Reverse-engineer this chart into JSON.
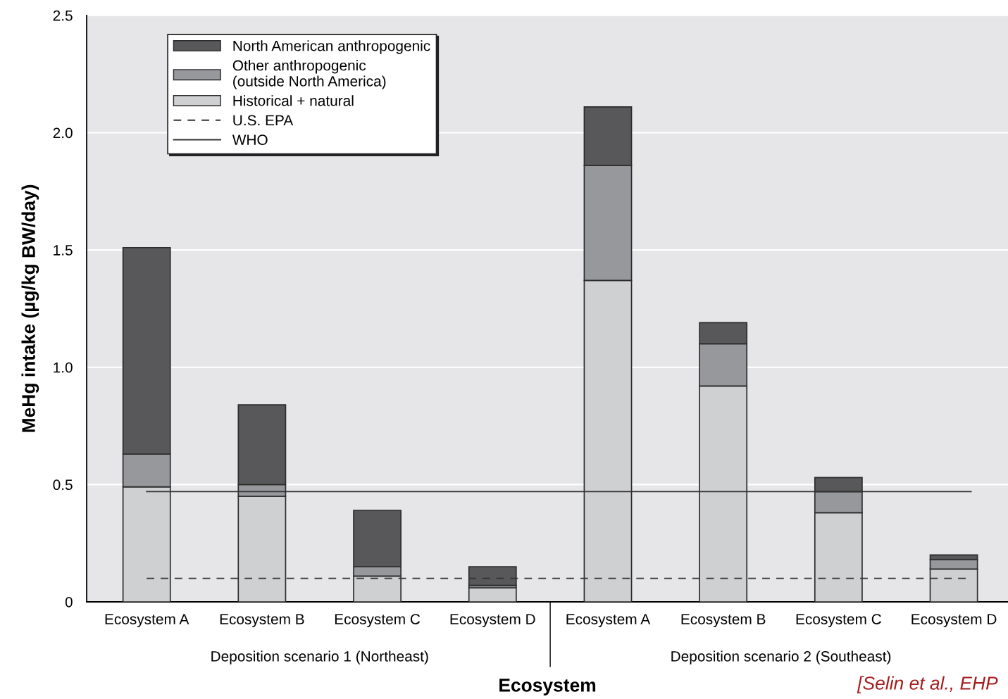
{
  "chart_data": {
    "type": "bar",
    "stacked": true,
    "categories": [
      "Ecosystem A",
      "Ecosystem B",
      "Ecosystem C",
      "Ecosystem D",
      "Ecosystem A",
      "Ecosystem B",
      "Ecosystem C",
      "Ecosystem D"
    ],
    "series": [
      {
        "name": "Historical + natural",
        "color": "#cfd0d2",
        "values": [
          0.49,
          0.45,
          0.11,
          0.06,
          1.37,
          0.92,
          0.38,
          0.14
        ]
      },
      {
        "name": "Other anthropogenic\n(outside North America)",
        "color": "#97989c",
        "values": [
          0.14,
          0.05,
          0.04,
          0.01,
          0.49,
          0.18,
          0.09,
          0.04
        ]
      },
      {
        "name": "North American anthropogenic",
        "color": "#58585a",
        "values": [
          0.88,
          0.34,
          0.24,
          0.08,
          0.25,
          0.09,
          0.06,
          0.02
        ]
      }
    ],
    "ylabel": "MeHg intake (µg/kg BW/day)",
    "xlabel": "Ecosystem",
    "ylim": [
      0,
      2.5
    ],
    "yticks": [
      0,
      0.5,
      {
        "value": 1.0,
        "label": "1.0"
      },
      1.5,
      {
        "value": 2.0,
        "label": "2.0"
      },
      2.5
    ],
    "grid": "y",
    "legend": "top left",
    "ref_lines": [
      {
        "axis": "y",
        "value": 0.1,
        "label": "U.S. EPA",
        "color": "#333333",
        "line_style": "dashed"
      },
      {
        "axis": "y",
        "value": 0.47,
        "label": "WHO",
        "color": "#333333",
        "line_style": "solid"
      }
    ],
    "annotations": [
      "Deposition scenario 1 (Northeast)",
      "Deposition scenario 2 (Southeast)",
      "[Selin et al., EHP"
    ]
  }
}
